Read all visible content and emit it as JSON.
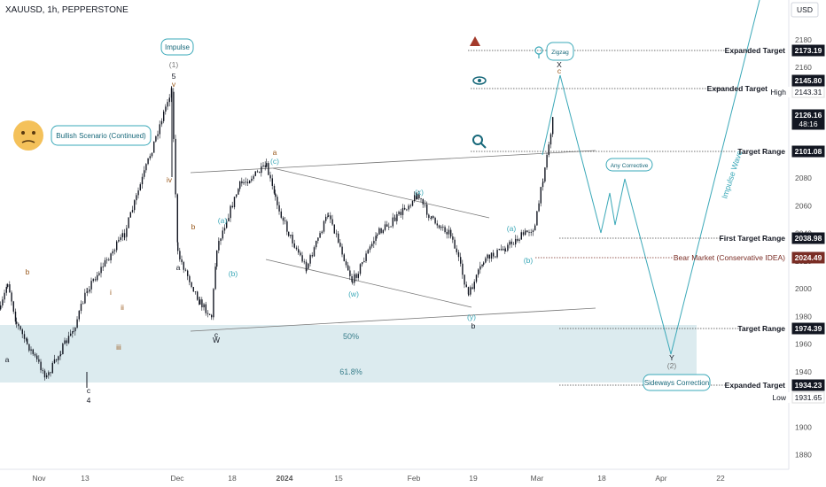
{
  "header": {
    "symbol": "XAUUSD, 1h, PEPPERSTONE"
  },
  "price_axis": {
    "currency": "USD"
  },
  "colors": {
    "candle": "#131722",
    "teal": "#3aa8b8",
    "zone": "#d6e8ec",
    "red_tag": "#7a2d25",
    "dark_tag": "#131722",
    "bubble_border": "#3aa8b8"
  },
  "chart_data": {
    "type": "candlestick",
    "title": "XAUUSD, 1h, PEPPERSTONE",
    "y_ticks": [
      2180,
      2160,
      2140,
      2120,
      2100,
      2080,
      2060,
      2040,
      2020,
      2000,
      1980,
      1960,
      1940,
      1920,
      1900,
      1880
    ],
    "x_ticks": [
      "Nov",
      "13",
      "Dec",
      "18",
      "2024",
      "15",
      "Feb",
      "19",
      "Mar",
      "18",
      "Apr",
      "22"
    ],
    "price_path": [
      [
        "Nov",
        1985
      ],
      [
        "Nov",
        2005
      ],
      [
        "Nov",
        1975
      ],
      [
        "Nov",
        1960
      ],
      [
        "13",
        1936
      ],
      [
        "13",
        1955
      ],
      [
        "13",
        1970
      ],
      [
        "13",
        2000
      ],
      [
        "Dec",
        2040
      ],
      [
        "Dec",
        2145
      ],
      [
        "Dec",
        2025
      ],
      [
        "Dec",
        1990
      ],
      [
        "Dec",
        1980
      ],
      [
        "18",
        2030
      ],
      [
        "18",
        2050
      ],
      [
        "18",
        2075
      ],
      [
        "2024",
        2088
      ],
      [
        "2024",
        2065
      ],
      [
        "2024",
        2040
      ],
      [
        "15",
        2015
      ],
      [
        "15",
        2055
      ],
      [
        "15",
        2005
      ],
      [
        "15",
        2040
      ],
      [
        "Feb",
        2050
      ],
      [
        "Feb",
        2068
      ],
      [
        "Feb",
        2050
      ],
      [
        "Feb",
        2040
      ],
      [
        "19",
        1995
      ],
      [
        "19",
        2020
      ],
      [
        "19",
        2030
      ],
      [
        "19",
        2045
      ],
      [
        "Mar",
        2080
      ],
      [
        "Mar",
        2125
      ]
    ],
    "levels": [
      {
        "label": "Expanded Target",
        "price": 2173.19
      },
      {
        "label": "Expanded Target",
        "price": 2145.8
      },
      {
        "label": "Target Range",
        "price": 2101.08
      },
      {
        "label": "First Target Range",
        "price": 2038.98
      },
      {
        "label": "Bear Market (Conservative IDEA)",
        "price": 2024.49
      },
      {
        "label": "Target Range",
        "price": 1974.39
      },
      {
        "label": "Expanded Target",
        "price": 1934.23
      }
    ],
    "price_tags": [
      {
        "value": "2173.19",
        "kind": "dark"
      },
      {
        "value": "2145.80",
        "kind": "dark"
      },
      {
        "value": "2143.31",
        "kind": "plain",
        "caption": "High"
      },
      {
        "value": "2126.16",
        "kind": "dark",
        "sub": "48:16"
      },
      {
        "value": "2101.08",
        "kind": "dark"
      },
      {
        "value": "2038.98",
        "kind": "dark"
      },
      {
        "value": "2024.49",
        "kind": "red"
      },
      {
        "value": "1974.39",
        "kind": "dark"
      },
      {
        "value": "1934.23",
        "kind": "dark"
      },
      {
        "value": "1931.65",
        "kind": "plain",
        "caption": "Low"
      }
    ],
    "fib_labels": [
      "50%",
      "61.8%"
    ],
    "wave_labels": [
      {
        "text": "(1)",
        "color": "gray"
      },
      {
        "text": "5",
        "color": "dark"
      },
      {
        "text": "v",
        "color": "brown"
      },
      {
        "text": "b",
        "color": "brown"
      },
      {
        "text": "a",
        "color": "dark"
      },
      {
        "text": "c",
        "color": "dark"
      },
      {
        "text": "4",
        "color": "dark"
      },
      {
        "text": "iii",
        "color": "brown"
      },
      {
        "text": "iv",
        "color": "brown"
      },
      {
        "text": "i",
        "color": "brown"
      },
      {
        "text": "ii",
        "color": "brown"
      },
      {
        "text": "b",
        "color": "brown"
      },
      {
        "text": "a",
        "color": "dark"
      },
      {
        "text": "c",
        "color": "dark"
      },
      {
        "text": "W",
        "color": "dark"
      },
      {
        "text": "(a)",
        "color": "teal"
      },
      {
        "text": "(b)",
        "color": "teal"
      },
      {
        "text": "(c)",
        "color": "teal"
      },
      {
        "text": "a",
        "color": "brown"
      },
      {
        "text": "(w)",
        "color": "teal"
      },
      {
        "text": "(x)",
        "color": "teal"
      },
      {
        "text": "(y)",
        "color": "teal"
      },
      {
        "text": "b",
        "color": "dark"
      },
      {
        "text": "(a)",
        "color": "teal"
      },
      {
        "text": "(b)",
        "color": "teal"
      },
      {
        "text": "c",
        "color": "brown"
      },
      {
        "text": "X",
        "color": "dark"
      },
      {
        "text": "Y",
        "color": "dark"
      },
      {
        "text": "(2)",
        "color": "gray"
      }
    ],
    "bubbles": [
      "Impulse",
      "Bullish Scenario (Continued)",
      "Zigzag",
      "Any Corrective",
      "Sideways Correction"
    ],
    "diagonal_label": "Impulse Wave"
  }
}
